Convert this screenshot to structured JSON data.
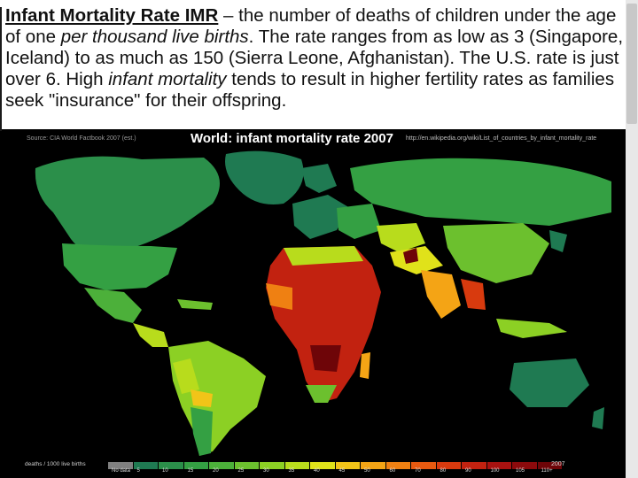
{
  "slide": {
    "term": "Infant Mortality Rate IMR",
    "t1": " – the number of deaths of children under the age of one ",
    "em1": "per thousand live births",
    "t2": ". The rate ranges from as low as 3 (Singapore, Iceland) to as much as 150 (Sierra Leone, Afghanistan). The U.S. rate is just over 6. High ",
    "em2": "infant mortality",
    "t3": " tends to result in higher fertility rates as families seek \"insurance\" for their offspring."
  },
  "map": {
    "title": "World: infant mortality rate 2007",
    "source": "Source: CIA World Factbook 2007 (est.)",
    "url": "http://en.wikipedia.org/wiki/List_of_countries_by_infant_mortality_rate",
    "legend_label": "deaths / 1000 live births",
    "legend_year": "2007",
    "legend": [
      {
        "label": "No data",
        "color": "#808080"
      },
      {
        "label": "5",
        "color": "#1f7a52"
      },
      {
        "label": "10",
        "color": "#2b8f4a"
      },
      {
        "label": "15",
        "color": "#34a043"
      },
      {
        "label": "20",
        "color": "#4cb03a"
      },
      {
        "label": "25",
        "color": "#6cc02e"
      },
      {
        "label": "30",
        "color": "#8cd024"
      },
      {
        "label": "35",
        "color": "#b8dc1c"
      },
      {
        "label": "40",
        "color": "#e0e21a"
      },
      {
        "label": "45",
        "color": "#f2c418"
      },
      {
        "label": "50",
        "color": "#f4a415"
      },
      {
        "label": "60",
        "color": "#ef8012"
      },
      {
        "label": "70",
        "color": "#e85a10"
      },
      {
        "label": "80",
        "color": "#d83a0e"
      },
      {
        "label": "90",
        "color": "#c22210"
      },
      {
        "label": "100",
        "color": "#a81210"
      },
      {
        "label": "105",
        "color": "#8c0a0c"
      },
      {
        "label": "110+",
        "color": "#6e0508"
      }
    ]
  }
}
